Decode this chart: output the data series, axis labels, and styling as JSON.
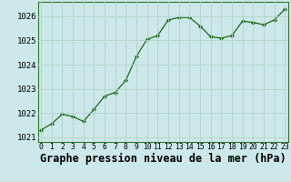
{
  "x": [
    0,
    1,
    2,
    3,
    4,
    5,
    6,
    7,
    8,
    9,
    10,
    11,
    12,
    13,
    14,
    15,
    16,
    17,
    18,
    19,
    20,
    21,
    22,
    23
  ],
  "y": [
    1021.3,
    1021.55,
    1021.95,
    1021.85,
    1021.65,
    1022.15,
    1022.7,
    1022.85,
    1023.35,
    1024.35,
    1025.05,
    1025.2,
    1025.85,
    1025.95,
    1025.95,
    1025.6,
    1025.15,
    1025.1,
    1025.2,
    1025.8,
    1025.75,
    1025.65,
    1025.85,
    1026.3
  ],
  "xlim": [
    -0.3,
    23.3
  ],
  "ylim": [
    1020.8,
    1026.6
  ],
  "yticks": [
    1021,
    1022,
    1023,
    1024,
    1025,
    1026
  ],
  "xticks": [
    0,
    1,
    2,
    3,
    4,
    5,
    6,
    7,
    8,
    9,
    10,
    11,
    12,
    13,
    14,
    15,
    16,
    17,
    18,
    19,
    20,
    21,
    22,
    23
  ],
  "xlabel": "Graphe pression niveau de la mer (hPa)",
  "line_color": "#1a6b1a",
  "marker": "D",
  "marker_size": 2.2,
  "background_color": "#cce8e8",
  "grid_color": "#b0d4cc",
  "xlabel_fontsize": 8.5,
  "tick_fontsize": 5.8,
  "ytick_fontsize": 6.5
}
